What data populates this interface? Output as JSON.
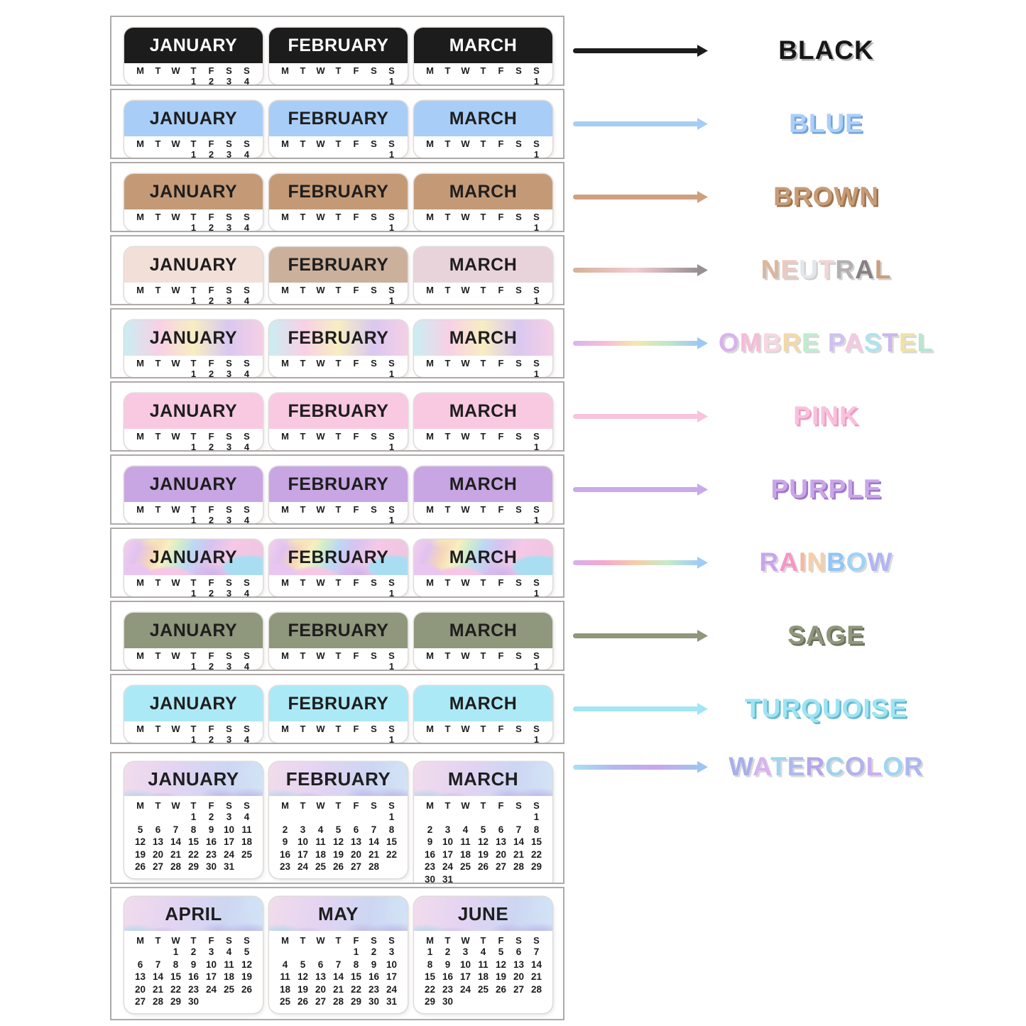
{
  "day_letters": [
    "M",
    "T",
    "W",
    "T",
    "F",
    "S",
    "S"
  ],
  "mini_months": [
    {
      "title": "JANUARY",
      "dates": [
        "",
        "",
        "",
        "1",
        "2",
        "3",
        "4"
      ]
    },
    {
      "title": "FEBRUARY",
      "dates": [
        "",
        "",
        "",
        "",
        "",
        "",
        "1"
      ]
    },
    {
      "title": "MARCH",
      "dates": [
        "",
        "",
        "",
        "",
        "",
        "",
        "1"
      ]
    }
  ],
  "rows": [
    {
      "kind": "mini",
      "title_color": "#ffffff",
      "header": {
        "type": "solid",
        "colors": [
          "#1c1c1c"
        ]
      },
      "legend": {
        "label": "BLACK",
        "color": "#161616",
        "shadow": "rgba(0,0,0,0.30)",
        "arrow_stops": [
          "#1c1c1c"
        ]
      }
    },
    {
      "kind": "mini",
      "title_color": "#1e1e1e",
      "header": {
        "type": "solid",
        "colors": [
          "#a8cdf7"
        ]
      },
      "legend": {
        "label": "BLUE",
        "color": "#abd0f8",
        "shadow": "#74a2d8",
        "arrow_stops": [
          "#a5cdf5"
        ]
      }
    },
    {
      "kind": "mini",
      "title_color": "#1e1e1e",
      "header": {
        "type": "solid",
        "colors": [
          "#c49a76"
        ]
      },
      "legend": {
        "label": "BROWN",
        "color": "#c79c77",
        "shadow": "#9b7351",
        "arrow_stops": [
          "#cfa080"
        ]
      }
    },
    {
      "kind": "mini",
      "title_color": "#1e1e1e",
      "header": {
        "type": "multi",
        "colors": [
          "#f2e0d8",
          "#cbb09c",
          "#e9d3da"
        ]
      },
      "legend": {
        "label": "NEUTRAL",
        "shadow": "rgba(0,0,0,0.18)",
        "letters": [
          {
            "ch": "N",
            "c": "#dcb79c"
          },
          {
            "ch": "E",
            "c": "#eccac2"
          },
          {
            "ch": "U",
            "c": "#e3e7ec"
          },
          {
            "ch": "T",
            "c": "#f1d6d6"
          },
          {
            "ch": "R",
            "c": "#b3afb2"
          },
          {
            "ch": "A",
            "c": "#868082"
          },
          {
            "ch": "L",
            "c": "#c89f7e"
          }
        ],
        "arrow_stops": [
          "#d8b096",
          "#f2ccd2",
          "#969092"
        ]
      }
    },
    {
      "kind": "mini",
      "title_color": "#1e1e1e",
      "header": {
        "type": "gradient",
        "colors": [
          "#c9eef2",
          "#f8d0e6",
          "#f7eec2",
          "#d9c8f0",
          "#f6cfe6"
        ]
      },
      "legend": {
        "label": "OMBRE PASTEL",
        "shadow": "rgba(0,0,0,0.15)",
        "letters": [
          {
            "ch": "O",
            "c": "#d7b3ec"
          },
          {
            "ch": "M",
            "c": "#f6bcd9"
          },
          {
            "ch": "B",
            "c": "#f8d6e2"
          },
          {
            "ch": "R",
            "c": "#f3d9a8"
          },
          {
            "ch": "E",
            "c": "#bfecd0"
          },
          {
            "ch": " ",
            "c": null
          },
          {
            "ch": "P",
            "c": "#cfc0f2"
          },
          {
            "ch": "A",
            "c": "#f4c9e2"
          },
          {
            "ch": "S",
            "c": "#aee4ee"
          },
          {
            "ch": "T",
            "c": "#cbb6ee"
          },
          {
            "ch": "E",
            "c": "#efe2a6"
          },
          {
            "ch": "L",
            "c": "#b6e7cf"
          }
        ],
        "arrow_stops": [
          "#d9b4f0",
          "#f8bcd8",
          "#f6e8ac",
          "#bfe8c8",
          "#9ec8f4"
        ]
      }
    },
    {
      "kind": "mini",
      "title_color": "#1e1e1e",
      "header": {
        "type": "solid",
        "colors": [
          "#f9c9e2"
        ]
      },
      "legend": {
        "label": "PINK",
        "color": "#f8c2dd",
        "shadow": "#eb9cc2",
        "arrow_stops": [
          "#f9c3dd"
        ]
      }
    },
    {
      "kind": "mini",
      "title_color": "#1e1e1e",
      "header": {
        "type": "solid",
        "colors": [
          "#c7a6e3"
        ]
      },
      "legend": {
        "label": "PURPLE",
        "color": "#c9a7e8",
        "shadow": "#a078c8",
        "arrow_stops": [
          "#c9a9e8"
        ]
      }
    },
    {
      "kind": "mini",
      "title_color": "#1e1e1e",
      "header": {
        "type": "pattern",
        "pattern": "rainbow",
        "colors": [
          "#f4c8e6",
          "#bcd8f4",
          "#f8f0c0",
          "#d8c2f0"
        ]
      },
      "legend": {
        "label": "RAINBOW",
        "shadow": "rgba(0,0,0,0.15)",
        "letters": [
          {
            "ch": "R",
            "c": "#c9a4ec"
          },
          {
            "ch": "A",
            "c": "#f795c6"
          },
          {
            "ch": "I",
            "c": "#f7b69e"
          },
          {
            "ch": "N",
            "c": "#f8cda6"
          },
          {
            "ch": "B",
            "c": "#8fc6f6"
          },
          {
            "ch": "O",
            "c": "#9ed2f8"
          },
          {
            "ch": "W",
            "c": "#b1b5f2"
          }
        ],
        "arrow_stops": [
          "#d4b0f0",
          "#f8a8cc",
          "#f8cca8",
          "#c4ecc8",
          "#a0ccf8"
        ]
      }
    },
    {
      "kind": "mini",
      "title_color": "#1e1e1e",
      "header": {
        "type": "solid",
        "colors": [
          "#8f977c"
        ]
      },
      "legend": {
        "label": "SAGE",
        "color": "#8f977c",
        "shadow": "#6d735c",
        "arrow_stops": [
          "#8f977c"
        ]
      }
    },
    {
      "kind": "mini",
      "title_color": "#1e1e1e",
      "header": {
        "type": "solid",
        "colors": [
          "#ace9f6"
        ]
      },
      "legend": {
        "label": "TURQUOISE",
        "color": "#9fe4f4",
        "shadow": "#66b9cf",
        "arrow_stops": [
          "#a2e6f4"
        ]
      }
    },
    {
      "kind": "large",
      "title_color": "#1e1e1e",
      "header": {
        "type": "pattern",
        "pattern": "watercolor",
        "colors": [
          "#f2dcec",
          "#ccd6f2",
          "#c0a8e4",
          "#9fd4ea"
        ]
      },
      "legend": {
        "label": "WATERCOLOR",
        "shadow": "rgba(0,0,0,0.15)",
        "letters": [
          {
            "ch": "W",
            "c": "#a6b0ea"
          },
          {
            "ch": "A",
            "c": "#d6b2f2"
          },
          {
            "ch": "T",
            "c": "#9ed6ee"
          },
          {
            "ch": "E",
            "c": "#aebaec"
          },
          {
            "ch": "R",
            "c": "#b4a6ea"
          },
          {
            "ch": "C",
            "c": "#9ed2ec"
          },
          {
            "ch": "O",
            "c": "#b2b2ee"
          },
          {
            "ch": "L",
            "c": "#c8aff2"
          },
          {
            "ch": "O",
            "c": "#9ed6f2"
          },
          {
            "ch": "R",
            "c": "#aeb6ee"
          }
        ],
        "arrow_stops": [
          "#a9e2f2",
          "#b2b8ec",
          "#c9a6ea",
          "#9fc4f2"
        ]
      },
      "months": [
        {
          "title": "JANUARY",
          "weeks": [
            [
              "",
              "",
              "",
              "1",
              "2",
              "3",
              "4"
            ],
            [
              "5",
              "6",
              "7",
              "8",
              "9",
              "10",
              "11"
            ],
            [
              "12",
              "13",
              "14",
              "15",
              "16",
              "17",
              "18"
            ],
            [
              "19",
              "20",
              "21",
              "22",
              "23",
              "24",
              "25"
            ],
            [
              "26",
              "27",
              "28",
              "29",
              "30",
              "31",
              ""
            ]
          ]
        },
        {
          "title": "FEBRUARY",
          "weeks": [
            [
              "",
              "",
              "",
              "",
              "",
              "",
              "1"
            ],
            [
              "2",
              "3",
              "4",
              "5",
              "6",
              "7",
              "8"
            ],
            [
              "9",
              "10",
              "11",
              "12",
              "13",
              "14",
              "15"
            ],
            [
              "16",
              "17",
              "18",
              "19",
              "20",
              "21",
              "22"
            ],
            [
              "23",
              "24",
              "25",
              "26",
              "27",
              "28",
              ""
            ]
          ]
        },
        {
          "title": "MARCH",
          "weeks": [
            [
              "",
              "",
              "",
              "",
              "",
              "",
              "1"
            ],
            [
              "2",
              "3",
              "4",
              "5",
              "6",
              "7",
              "8"
            ],
            [
              "9",
              "10",
              "11",
              "12",
              "13",
              "14",
              "15"
            ],
            [
              "16",
              "17",
              "18",
              "19",
              "20",
              "21",
              "22"
            ],
            [
              "23",
              "24",
              "25",
              "26",
              "27",
              "28",
              "29"
            ],
            [
              "30",
              "31",
              "",
              "",
              "",
              "",
              ""
            ]
          ]
        }
      ]
    },
    {
      "kind": "large",
      "title_color": "#1e1e1e",
      "header": {
        "type": "pattern",
        "pattern": "watercolor",
        "colors": [
          "#f2dcec",
          "#ccd6f2",
          "#c0a8e4",
          "#9fd4ea"
        ]
      },
      "legend": null,
      "months": [
        {
          "title": "APRIL",
          "weeks": [
            [
              "",
              "",
              "1",
              "2",
              "3",
              "4",
              "5"
            ],
            [
              "6",
              "7",
              "8",
              "9",
              "10",
              "11",
              "12"
            ],
            [
              "13",
              "14",
              "15",
              "16",
              "17",
              "18",
              "19"
            ],
            [
              "20",
              "21",
              "22",
              "23",
              "24",
              "25",
              "26"
            ],
            [
              "27",
              "28",
              "29",
              "30",
              "",
              "",
              ""
            ]
          ]
        },
        {
          "title": "MAY",
          "weeks": [
            [
              "",
              "",
              "",
              "",
              "1",
              "2",
              "3"
            ],
            [
              "4",
              "5",
              "6",
              "7",
              "8",
              "9",
              "10"
            ],
            [
              "11",
              "12",
              "13",
              "14",
              "15",
              "16",
              "17"
            ],
            [
              "18",
              "19",
              "20",
              "21",
              "22",
              "23",
              "24"
            ],
            [
              "25",
              "26",
              "27",
              "28",
              "29",
              "30",
              "31"
            ]
          ]
        },
        {
          "title": "JUNE",
          "weeks": [
            [
              "1",
              "2",
              "3",
              "4",
              "5",
              "6",
              "7"
            ],
            [
              "8",
              "9",
              "10",
              "11",
              "12",
              "13",
              "14"
            ],
            [
              "15",
              "16",
              "17",
              "18",
              "19",
              "20",
              "21"
            ],
            [
              "22",
              "23",
              "24",
              "25",
              "26",
              "27",
              "28"
            ],
            [
              "29",
              "30",
              "",
              "",
              "",
              "",
              ""
            ]
          ]
        }
      ]
    }
  ]
}
